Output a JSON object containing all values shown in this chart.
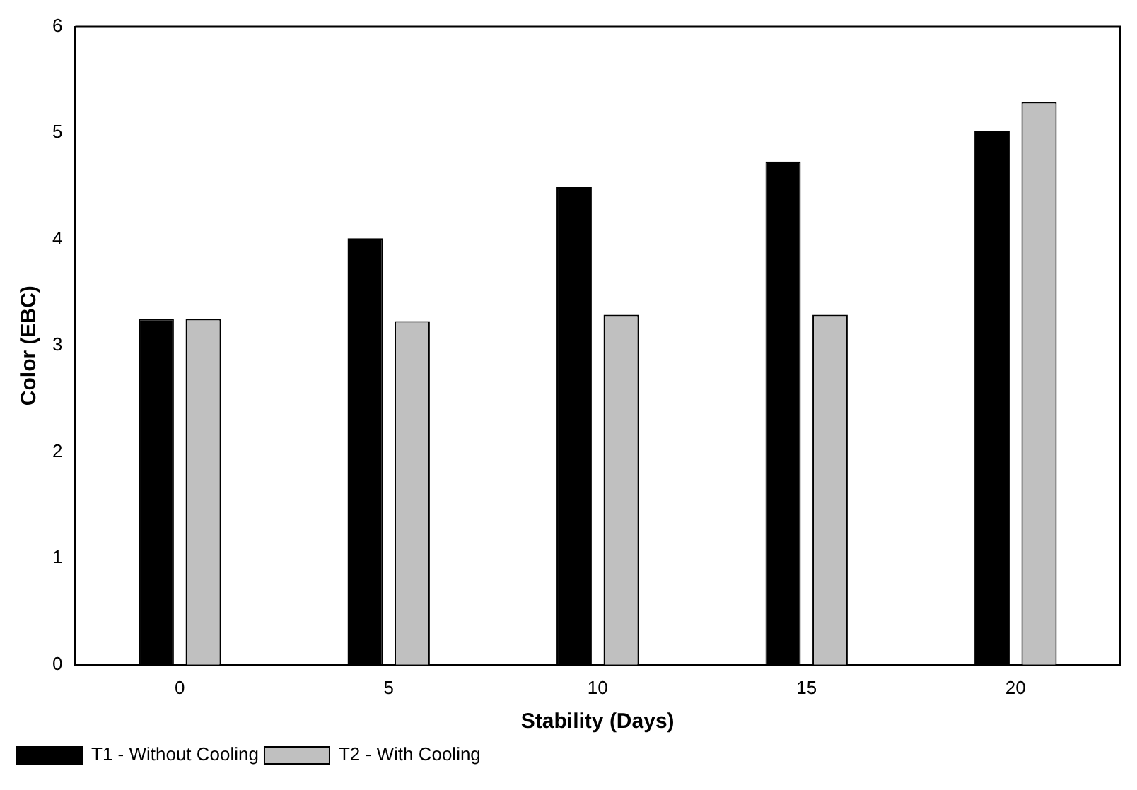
{
  "chart_data": {
    "type": "bar",
    "xlabel": "Stability (Days)",
    "ylabel": "Color (EBC)",
    "categories": [
      "0",
      "5",
      "10",
      "15",
      "20"
    ],
    "series": [
      {
        "name": "T1 - Without Cooling",
        "color": "#000000",
        "values": [
          3.25,
          4.01,
          4.49,
          4.73,
          5.02
        ]
      },
      {
        "name": "T2 - With Cooling",
        "color": "#c0c0c0",
        "values": [
          3.25,
          3.23,
          3.29,
          3.29,
          5.29
        ]
      }
    ],
    "ylim": [
      0,
      6
    ],
    "yticks": [
      0,
      1,
      2,
      3,
      4,
      5,
      6
    ],
    "grid": false,
    "legend": "bottom left"
  }
}
